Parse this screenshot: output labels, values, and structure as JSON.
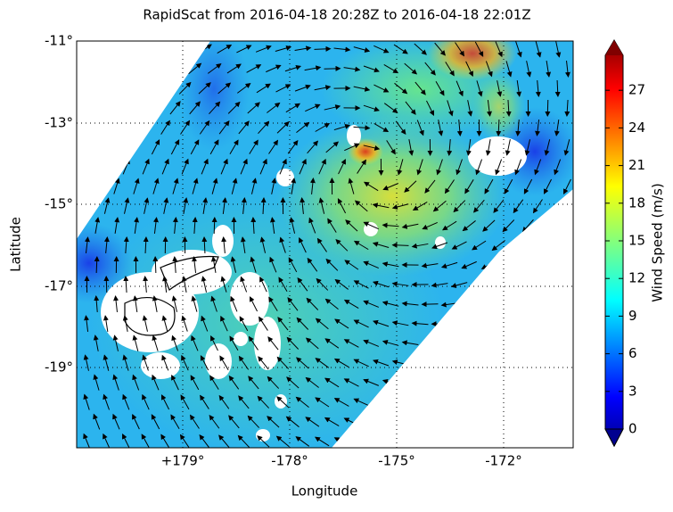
{
  "title": "RapidScat  from 2016-04-18 20:28Z to 2016-04-18 22:01Z",
  "x_label": "Longitude",
  "y_label": "Latitude",
  "x_ticks": [
    "+179°",
    "-178°",
    "-175°",
    "-172°"
  ],
  "y_ticks": [
    "-11°",
    "-13°",
    "-15°",
    "-17°",
    "-19°"
  ],
  "colorbar": {
    "label": "Wind Speed (m/s)",
    "range": [
      0,
      30
    ],
    "ticks": [
      0,
      3,
      6,
      9,
      12,
      15,
      18,
      21,
      24,
      27
    ]
  }
}
